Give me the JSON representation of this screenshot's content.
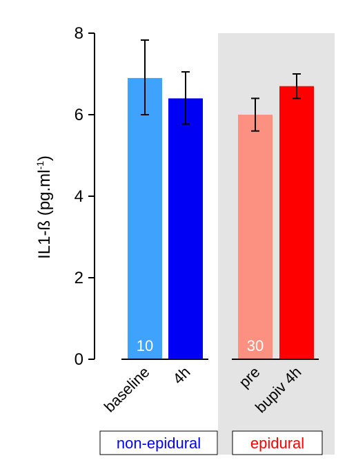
{
  "chart_data": {
    "type": "bar",
    "ylabel_main": "IL1-ß (pg.ml",
    "ylabel_sup": "-1",
    "ylabel_close": ")",
    "ylim": [
      0,
      8
    ],
    "yticks": [
      "0",
      "2",
      "4",
      "6",
      "8"
    ],
    "categories": [
      "baseline",
      "4h",
      "pre",
      "bupiv 4h"
    ],
    "values": [
      6.9,
      6.4,
      6.0,
      6.7
    ],
    "error_upper": [
      7.83,
      7.05,
      6.4,
      7.0
    ],
    "error_lower": [
      6.0,
      5.77,
      5.6,
      6.4
    ],
    "colors": [
      "#3fa2fc",
      "#0000f4",
      "#fd9181",
      "#fe0000"
    ],
    "groups": [
      {
        "name": "non-epidural",
        "n_label": "10",
        "color": "#0000f4",
        "shaded": false
      },
      {
        "name": "epidural",
        "n_label": "30",
        "color": "#fe0000",
        "shaded": true
      }
    ],
    "shade_color": "#e4e4e4"
  }
}
